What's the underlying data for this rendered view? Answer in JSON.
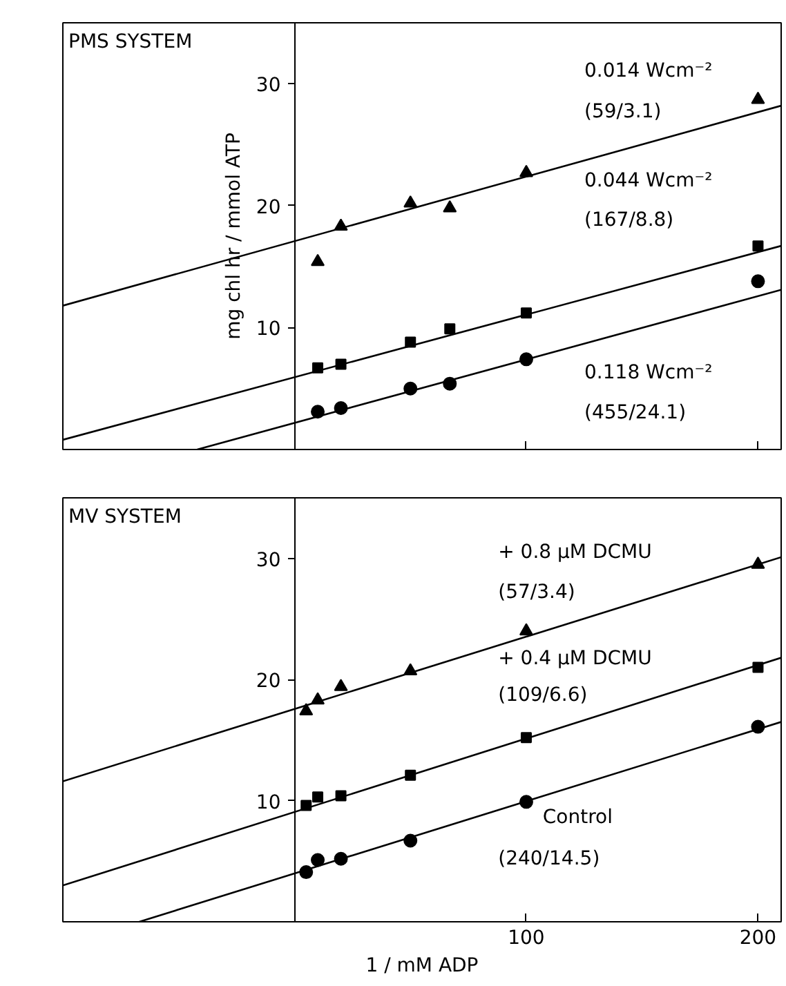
{
  "chart_data": [
    {
      "type": "scatter",
      "title": "PMS SYSTEM",
      "ylabel": "mg chl hr / mmol ATP",
      "xlim": [
        -100,
        210
      ],
      "ylim": [
        0,
        35
      ],
      "xticks": [
        {
          "value": 100,
          "label": null
        },
        {
          "value": 200,
          "label": null
        }
      ],
      "yticks": [
        10,
        20,
        30
      ],
      "tick_labels": "y",
      "grid": false,
      "series": [
        {
          "marker": "triangle",
          "color": "#000000",
          "x": [
            10,
            20,
            50,
            67,
            100,
            200
          ],
          "values": [
            15.4,
            18.3,
            20.2,
            19.8,
            22.7,
            28.7
          ]
        },
        {
          "marker": "square",
          "color": "#000000",
          "x": [
            10,
            20,
            50,
            67,
            100,
            200
          ],
          "values": [
            6.7,
            7.0,
            8.8,
            9.9,
            11.2,
            16.7
          ]
        },
        {
          "marker": "circle",
          "color": "#000000",
          "x": [
            10,
            20,
            50,
            67,
            100,
            200
          ],
          "values": [
            3.1,
            3.4,
            5.0,
            5.4,
            7.4,
            13.8
          ]
        },
        {
          "type": "line",
          "marker": "none",
          "color": "#000000",
          "x": [
            -100,
            210
          ],
          "values": [
            11.8,
            28.2
          ]
        },
        {
          "type": "line",
          "marker": "none",
          "color": "#000000",
          "x": [
            -100,
            210
          ],
          "values": [
            0.8,
            16.7
          ]
        },
        {
          "type": "line",
          "marker": "none",
          "color": "#000000",
          "x": [
            -42,
            210
          ],
          "values": [
            0,
            13.1
          ]
        }
      ],
      "annotations": [
        "0.014 Wcm⁻²",
        "(59/3.1)",
        "0.044 Wcm⁻²",
        "(167/8.8)",
        "0.118 Wcm⁻²",
        "(455/24.1)"
      ]
    },
    {
      "type": "scatter",
      "title": "MV SYSTEM",
      "xlabel": "1 / mM ADP",
      "xlim": [
        -100,
        210
      ],
      "ylim": [
        0,
        35
      ],
      "xticks": [
        100,
        200
      ],
      "yticks": [
        10,
        20,
        30
      ],
      "grid": false,
      "series": [
        {
          "marker": "triangle",
          "color": "#000000",
          "x": [
            5,
            10,
            20,
            50,
            100,
            200
          ],
          "values": [
            17.4,
            18.3,
            19.4,
            20.7,
            24.0,
            29.5
          ]
        },
        {
          "marker": "square",
          "color": "#000000",
          "x": [
            5,
            10,
            20,
            50,
            100,
            200
          ],
          "values": [
            9.6,
            10.3,
            10.4,
            12.1,
            15.2,
            21.0
          ]
        },
        {
          "marker": "circle",
          "color": "#000000",
          "x": [
            5,
            10,
            20,
            50,
            100,
            200
          ],
          "values": [
            4.1,
            5.1,
            5.2,
            6.7,
            9.9,
            16.1
          ]
        },
        {
          "type": "line",
          "marker": "none",
          "color": "#000000",
          "x": [
            -100,
            210
          ],
          "values": [
            11.6,
            30.1
          ]
        },
        {
          "type": "line",
          "marker": "none",
          "color": "#000000",
          "x": [
            -100,
            210
          ],
          "values": [
            3.0,
            21.8
          ]
        },
        {
          "type": "line",
          "marker": "none",
          "color": "#000000",
          "x": [
            -67,
            210
          ],
          "values": [
            0,
            16.5
          ]
        }
      ],
      "annotations": [
        "+ 0.8 μM DCMU",
        "(57/3.4)",
        "+ 0.4 μM DCMU",
        "(109/6.6)",
        "Control",
        "(240/14.5)"
      ]
    }
  ]
}
